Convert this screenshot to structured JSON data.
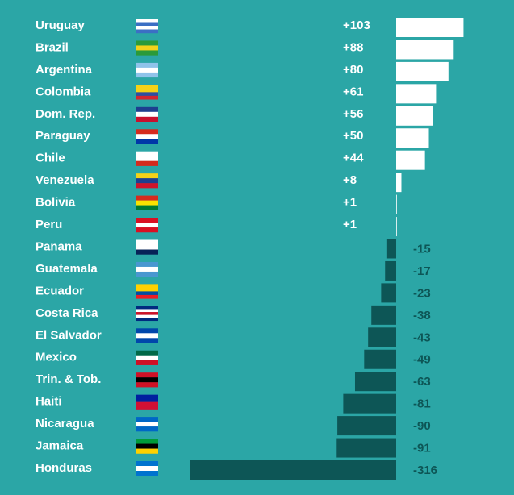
{
  "chart_data": {
    "type": "bar",
    "orientation": "horizontal",
    "categories": [
      "Uruguay",
      "Brazil",
      "Argentina",
      "Colombia",
      "Dom. Rep.",
      "Paraguay",
      "Chile",
      "Venezuela",
      "Bolivia",
      "Peru",
      "Panama",
      "Guatemala",
      "Ecuador",
      "Costa Rica",
      "El Salvador",
      "Mexico",
      "Trin. & Tob.",
      "Haiti",
      "Nicaragua",
      "Jamaica",
      "Honduras"
    ],
    "values": [
      103,
      88,
      80,
      61,
      56,
      50,
      44,
      8,
      1,
      1,
      -15,
      -17,
      -23,
      -38,
      -43,
      -49,
      -63,
      -81,
      -90,
      -91,
      -316
    ],
    "value_labels": [
      "+103",
      "+88",
      "+80",
      "+61",
      "+56",
      "+50",
      "+44",
      "+8",
      "+1",
      "+1",
      "-15",
      "-17",
      "-23",
      "-38",
      "-43",
      "-49",
      "-63",
      "-81",
      "-90",
      "-91",
      "-316"
    ],
    "positive_color": "#ffffff",
    "negative_color": "#0d5656"
  }
}
